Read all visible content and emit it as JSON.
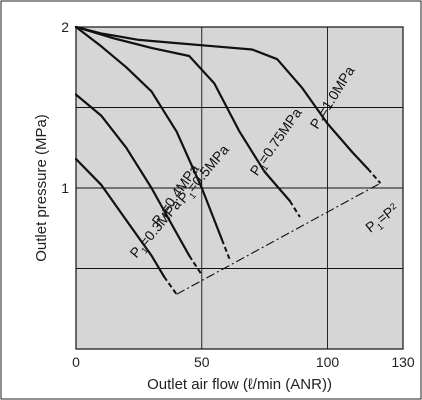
{
  "chart_data": {
    "type": "line",
    "xlabel": "Outlet air flow (ℓ/min (ANR))",
    "ylabel": "Outlet pressure (MPa)",
    "xlim": [
      0,
      130
    ],
    "ylim": [
      0,
      2
    ],
    "x_ticks": [
      "0",
      "50",
      "100",
      "130"
    ],
    "y_ticks": [
      "1",
      "2"
    ],
    "x_tick_values": [
      0,
      50,
      100,
      130
    ],
    "y_tick_values": [
      1,
      2
    ],
    "grid": true,
    "plot_background": "#d6d6d6",
    "series": [
      {
        "name": "P1=1.0MPa",
        "label_main": "P",
        "label_sub": "1",
        "label_rest": "=1.0MPa",
        "x": [
          0,
          10,
          25,
          40,
          55,
          70,
          80,
          90,
          100,
          110,
          116,
          121
        ],
        "y": [
          2.0,
          1.96,
          1.92,
          1.9,
          1.88,
          1.86,
          1.8,
          1.62,
          1.4,
          1.22,
          1.12,
          1.03
        ]
      },
      {
        "name": "P1=0.75MPa",
        "label_main": "P",
        "label_sub": "1",
        "label_rest": "=0.75MPa",
        "x": [
          0,
          15,
          30,
          45,
          55,
          65,
          75,
          85,
          89
        ],
        "y": [
          2.0,
          1.93,
          1.87,
          1.82,
          1.65,
          1.35,
          1.1,
          0.92,
          0.82
        ]
      },
      {
        "name": "P1=0.5MPa",
        "label_main": "P",
        "label_sub": "1",
        "label_rest": "=0.5MPa",
        "x": [
          0,
          10,
          20,
          30,
          40,
          50,
          58,
          61
        ],
        "y": [
          2.0,
          1.88,
          1.75,
          1.6,
          1.35,
          1.0,
          0.68,
          0.56
        ]
      },
      {
        "name": "P1=0.4MPa",
        "label_main": "P",
        "label_sub": "1",
        "label_rest": "=0.4MPa",
        "x": [
          0,
          10,
          20,
          30,
          40,
          45,
          50
        ],
        "y": [
          1.58,
          1.45,
          1.25,
          1.0,
          0.72,
          0.58,
          0.46
        ]
      },
      {
        "name": "P1=0.3MPa",
        "label_main": "P",
        "label_sub": "1",
        "label_rest": "=0.3MPa",
        "x": [
          0,
          10,
          20,
          30,
          35,
          40
        ],
        "y": [
          1.18,
          1.02,
          0.8,
          0.58,
          0.45,
          0.34
        ]
      }
    ],
    "boundary": {
      "name": "P1=P2",
      "label_main": "P",
      "label_sub": "1",
      "label_mid": "=P",
      "label_sub2": "2",
      "x": [
        40,
        121
      ],
      "y": [
        0.34,
        1.03
      ]
    }
  }
}
